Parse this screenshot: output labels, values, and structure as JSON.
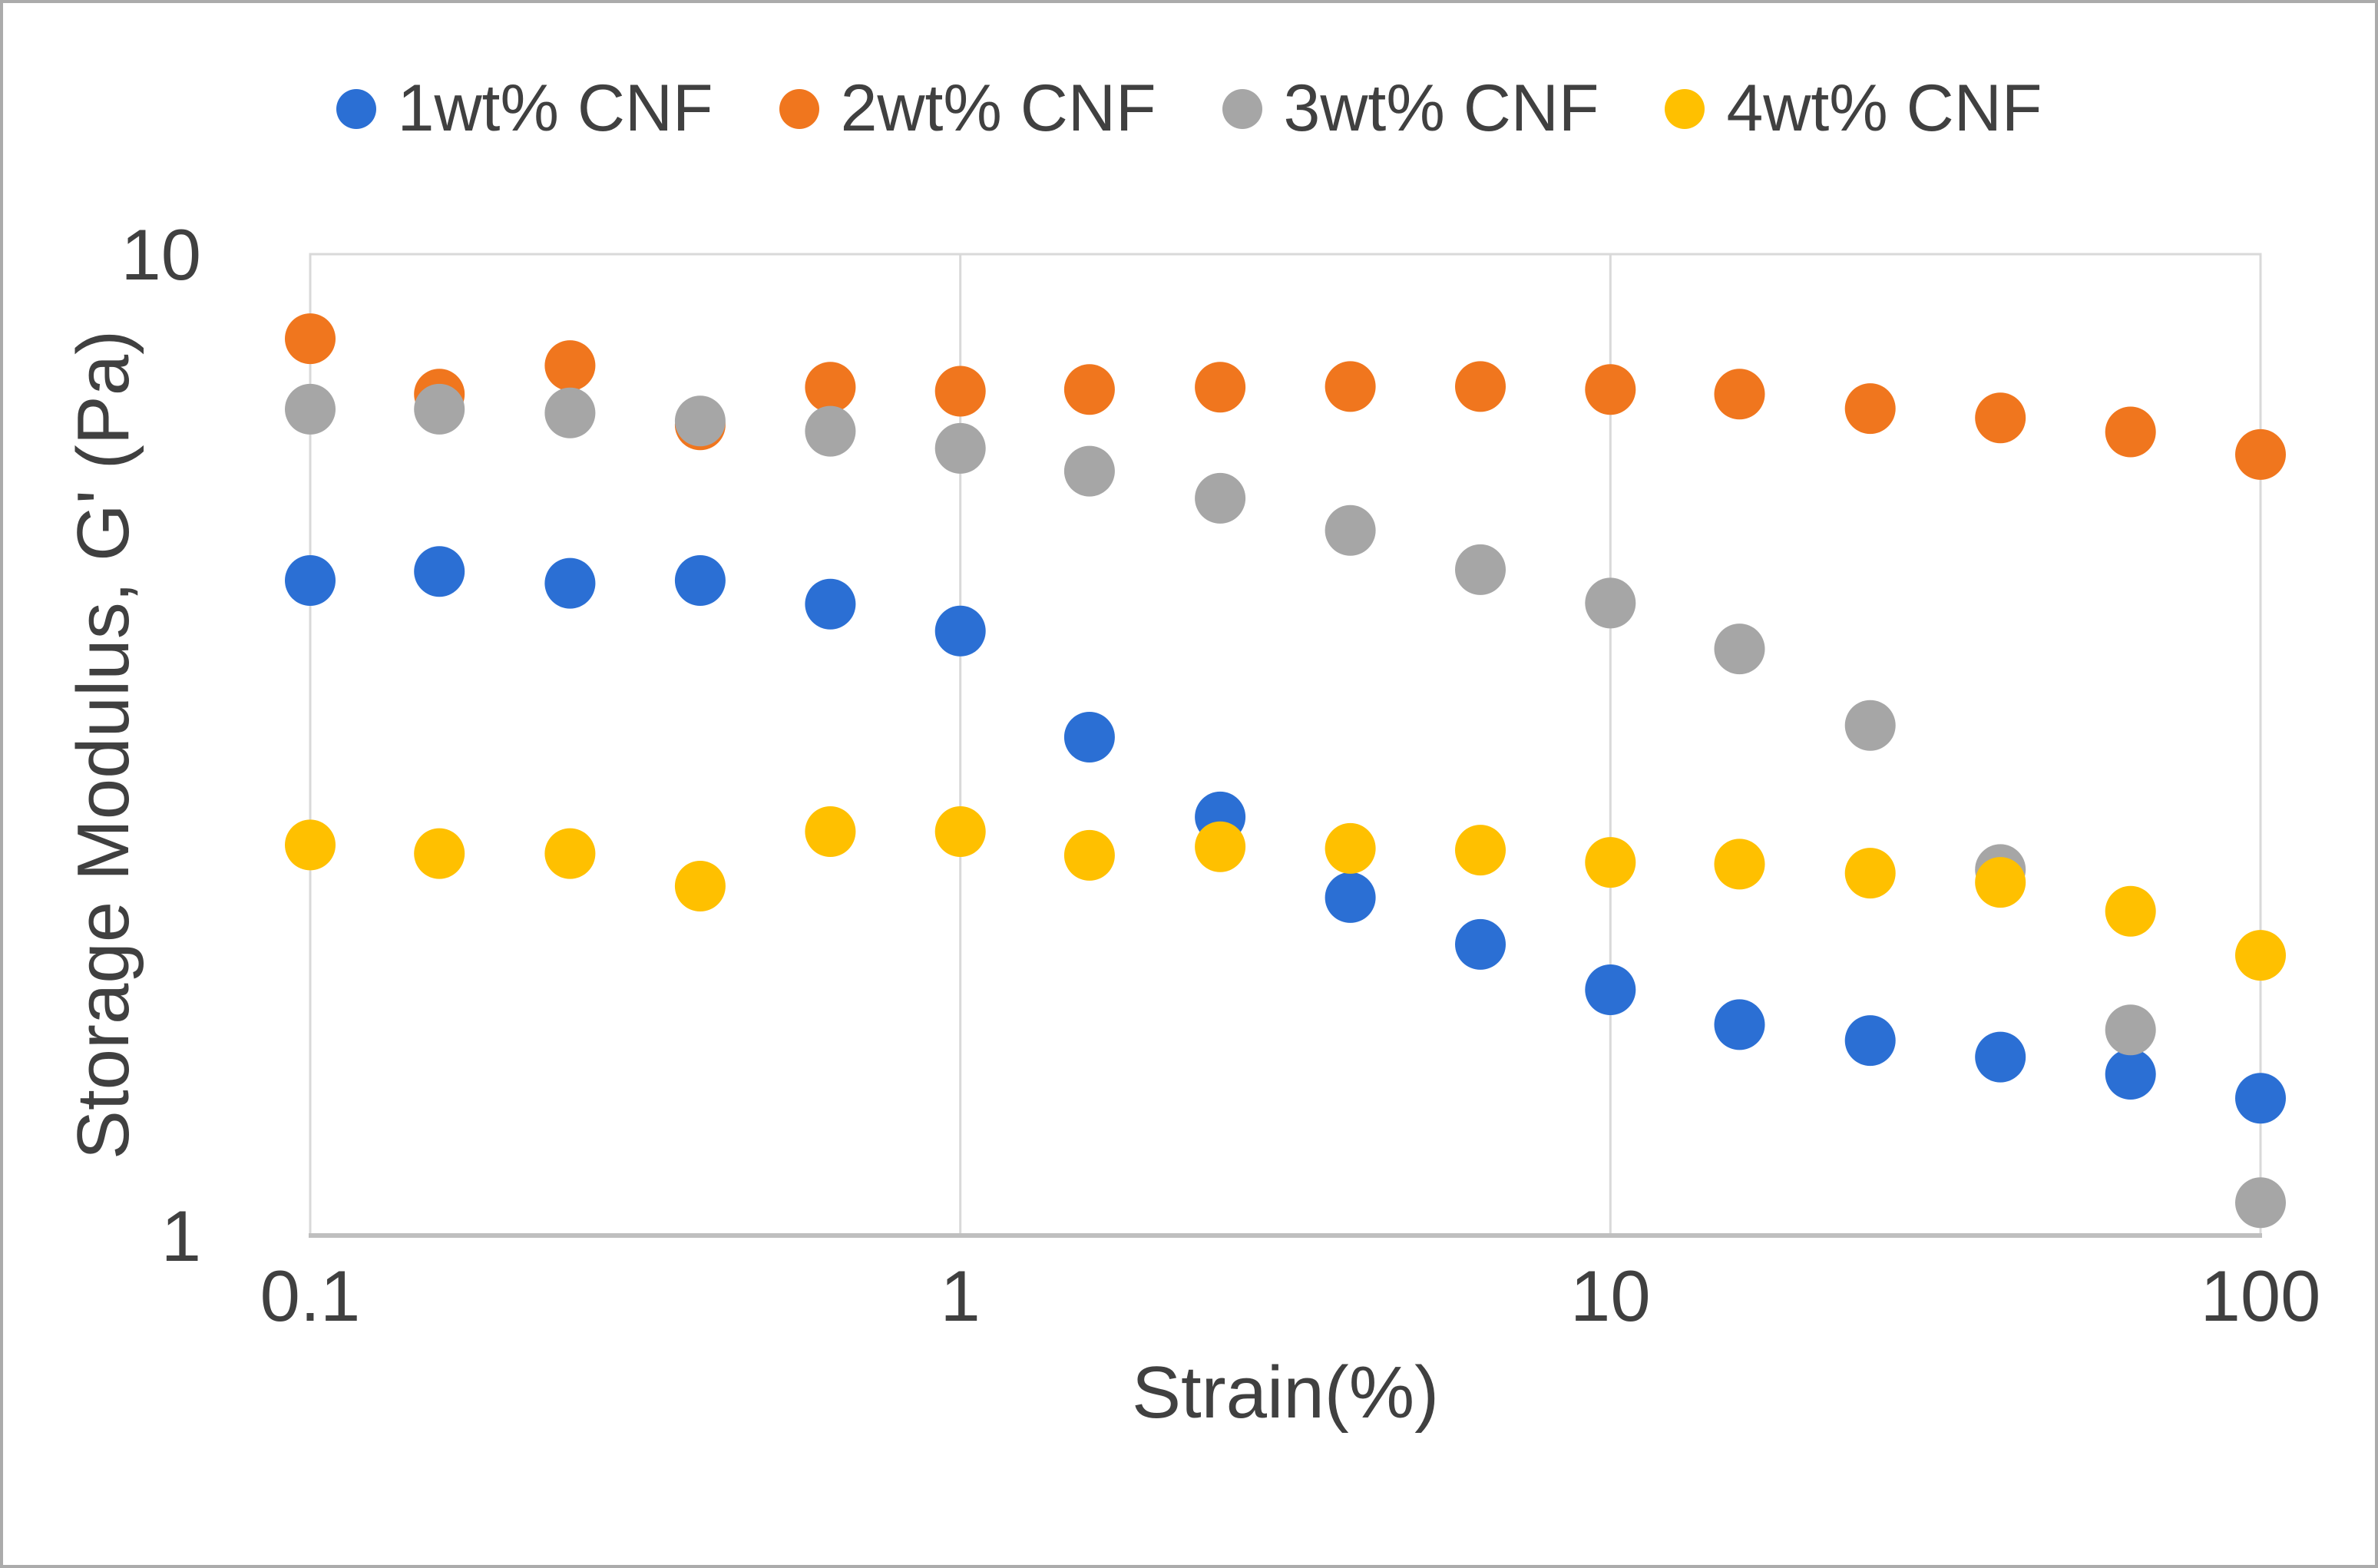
{
  "figure": {
    "background": "#FFFFFF",
    "border_color": "#ABABAB"
  },
  "styles": {
    "text_color": "#404040",
    "gridline_color": "#D9D9D9",
    "plot_border_color": "#D9D9D9",
    "axis_line_color": "#BFBFBF"
  },
  "legend": {
    "position": "top-center",
    "items": [
      {
        "label": "1wt% CNF",
        "color": "#2B6FD4",
        "marker": "circle-icon"
      },
      {
        "label": "2wt% CNF",
        "color": "#F0761E",
        "marker": "circle-icon"
      },
      {
        "label": "3wt% CNF",
        "color": "#A6A6A6",
        "marker": "circle-icon"
      },
      {
        "label": "4wt% CNF",
        "color": "#FFC000",
        "marker": "circle-icon"
      }
    ]
  },
  "axes": {
    "x": {
      "title": "Strain(%)",
      "scale": "log",
      "min": 0.1,
      "max": 100,
      "ticks": [
        {
          "label": "0.1",
          "value": 0.1
        },
        {
          "label": "1",
          "value": 1
        },
        {
          "label": "10",
          "value": 10
        },
        {
          "label": "100",
          "value": 100
        }
      ],
      "gridline_values": [
        1,
        10
      ]
    },
    "y": {
      "title": "Storage Modulus, G' (Pa)",
      "scale": "log",
      "min": 1,
      "max": 10,
      "ticks": [
        {
          "label": "10",
          "value": 10
        },
        {
          "label": "1",
          "value": 1
        }
      ],
      "gridline_values": []
    }
  },
  "chart_data": {
    "type": "scatter",
    "title": "",
    "xlabel": "Strain(%)",
    "ylabel": "Storage Modulus, G' (Pa)",
    "xscale": "log",
    "yscale": "log",
    "xlim": [
      0.1,
      100
    ],
    "ylim": [
      1,
      10
    ],
    "grid": "vertical-only",
    "legend_position": "top-center",
    "marker": "filled-circle",
    "x": [
      0.1,
      0.158,
      0.251,
      0.398,
      0.631,
      1,
      1.58,
      2.51,
      3.98,
      6.31,
      10,
      15.8,
      25.1,
      39.8,
      63.1,
      100
    ],
    "series": [
      {
        "name": "1wt% CNF",
        "color": "#2B6FD4",
        "values": [
          4.65,
          4.75,
          4.62,
          4.65,
          4.4,
          4.13,
          3.22,
          2.67,
          2.21,
          1.98,
          1.78,
          1.64,
          1.58,
          1.52,
          1.46,
          1.38
        ]
      },
      {
        "name": "2wt% CNF",
        "color": "#F0761E",
        "values": [
          8.2,
          7.2,
          7.7,
          6.7,
          7.32,
          7.25,
          7.28,
          7.32,
          7.33,
          7.33,
          7.28,
          7.2,
          6.96,
          6.81,
          6.59,
          6.25
        ]
      },
      {
        "name": "3wt% CNF",
        "color": "#A6A6A6",
        "values": [
          6.95,
          6.95,
          6.89,
          6.76,
          6.6,
          6.34,
          6.01,
          5.64,
          5.23,
          4.77,
          4.41,
          3.96,
          3.31,
          2.36,
          1.62,
          1.08
        ]
      },
      {
        "name": "4wt% CNF",
        "color": "#FFC000",
        "values": [
          2.5,
          2.45,
          2.45,
          2.27,
          2.58,
          2.58,
          2.44,
          2.49,
          2.48,
          2.47,
          2.4,
          2.39,
          2.34,
          2.29,
          2.14,
          1.93
        ]
      }
    ]
  }
}
